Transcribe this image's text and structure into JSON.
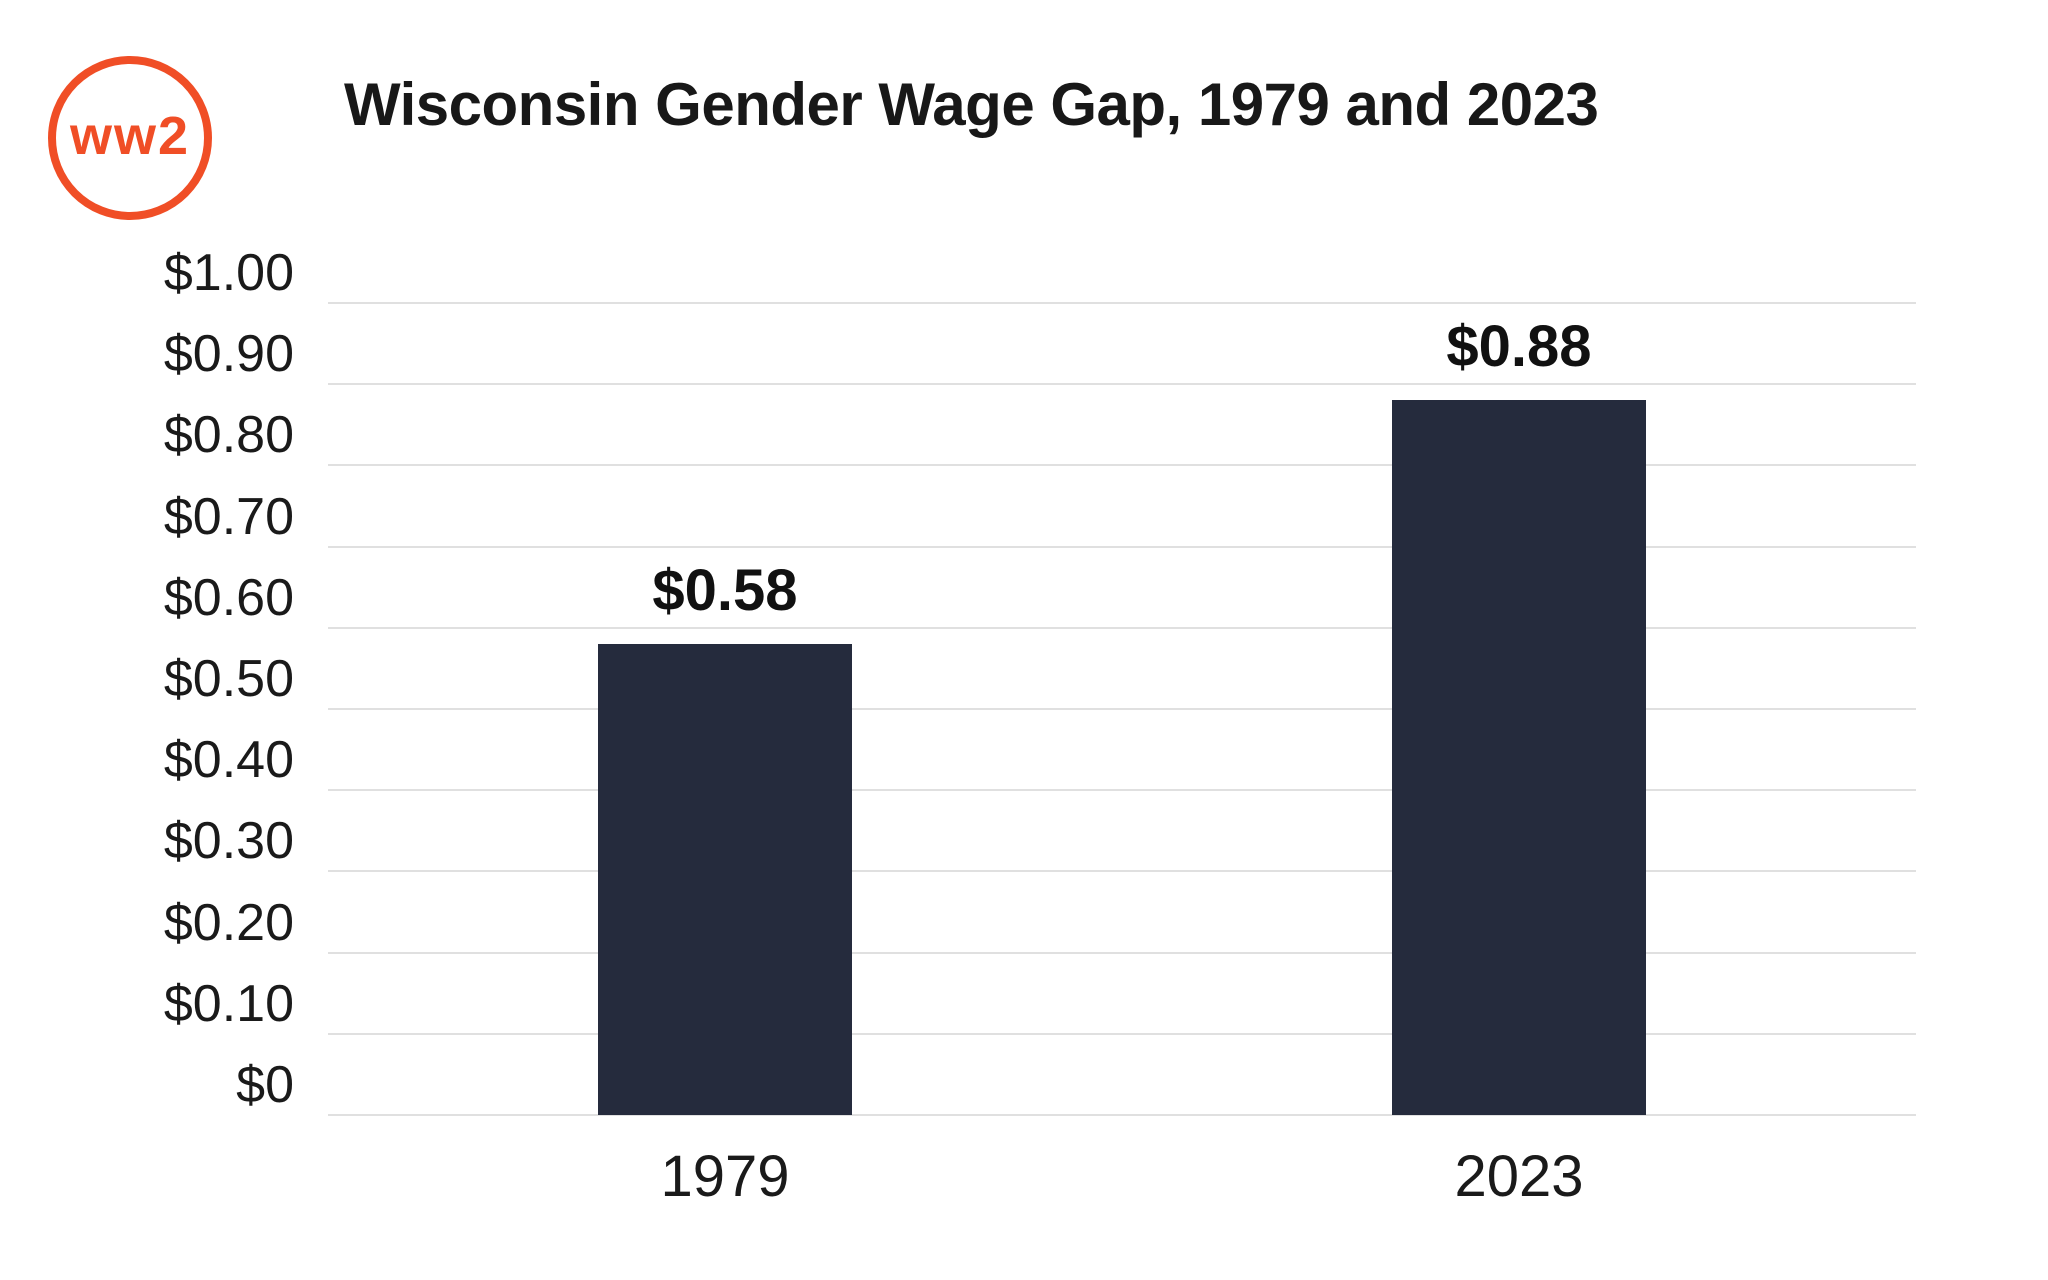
{
  "brand": {
    "logo_text": "ww2",
    "color": "#F04E26"
  },
  "chart_data": {
    "type": "bar",
    "title": "Wisconsin Gender Wage Gap, 1979 and 2023",
    "categories": [
      "1979",
      "2023"
    ],
    "values": [
      0.58,
      0.88
    ],
    "value_labels": [
      "$0.58",
      "$0.88"
    ],
    "xlabel": "",
    "ylabel": "",
    "ylim": [
      0,
      1
    ],
    "grid": true,
    "legend": "none",
    "y_ticks": [
      {
        "value": 0.0,
        "label": "$0"
      },
      {
        "value": 0.1,
        "label": "$0.10"
      },
      {
        "value": 0.2,
        "label": "$0.20"
      },
      {
        "value": 0.3,
        "label": "$0.30"
      },
      {
        "value": 0.4,
        "label": "$0.40"
      },
      {
        "value": 0.5,
        "label": "$0.50"
      },
      {
        "value": 0.6,
        "label": "$0.60"
      },
      {
        "value": 0.7,
        "label": "$0.70"
      },
      {
        "value": 0.8,
        "label": "$0.80"
      },
      {
        "value": 0.9,
        "label": "$0.90"
      },
      {
        "value": 1.0,
        "label": "$1.00"
      }
    ],
    "colors": {
      "bar": "#252B3D",
      "gridline": "#E0E0E0",
      "text": "#1A1A1A",
      "title": "#181818"
    }
  }
}
